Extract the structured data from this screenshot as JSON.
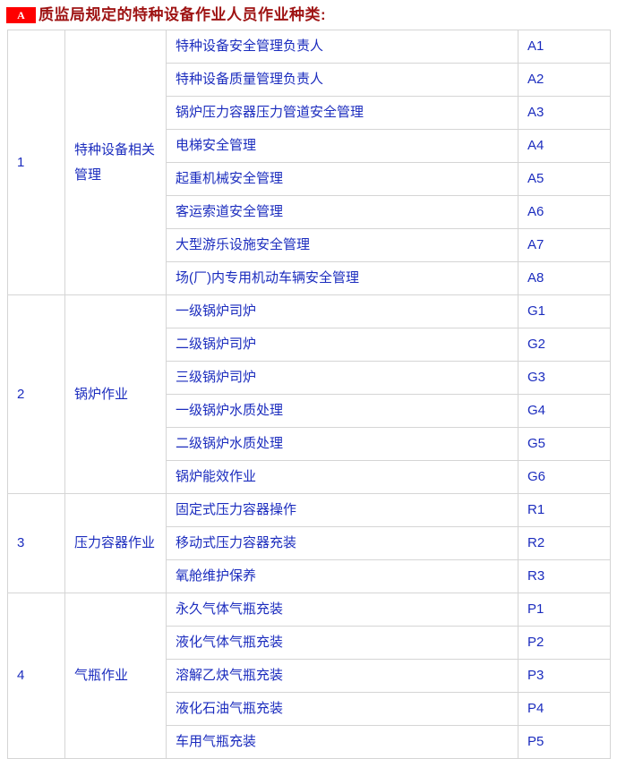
{
  "header": {
    "badge": "A",
    "title": "质监局规定的特种设备作业人员作业种类:"
  },
  "table": {
    "sections": [
      {
        "no": "1",
        "category": "特种设备相关管理",
        "items": [
          {
            "name": "特种设备安全管理负责人",
            "code": "A1"
          },
          {
            "name": "特种设备质量管理负责人",
            "code": "A2"
          },
          {
            "name": "锅炉压力容器压力管道安全管理",
            "code": "A3"
          },
          {
            "name": "电梯安全管理",
            "code": "A4"
          },
          {
            "name": "起重机械安全管理",
            "code": "A5"
          },
          {
            "name": "客运索道安全管理",
            "code": "A6"
          },
          {
            "name": "大型游乐设施安全管理",
            "code": "A7"
          },
          {
            "name": "场(厂)内专用机动车辆安全管理",
            "code": "A8"
          }
        ]
      },
      {
        "no": "2",
        "category": "锅炉作业",
        "items": [
          {
            "name": "一级锅炉司炉",
            "code": "G1"
          },
          {
            "name": "二级锅炉司炉",
            "code": "G2"
          },
          {
            "name": "三级锅炉司炉",
            "code": "G3"
          },
          {
            "name": "一级锅炉水质处理",
            "code": "G4"
          },
          {
            "name": "二级锅炉水质处理",
            "code": "G5"
          },
          {
            "name": "锅炉能效作业",
            "code": "G6"
          }
        ]
      },
      {
        "no": "3",
        "category": "压力容器作业",
        "items": [
          {
            "name": "固定式压力容器操作",
            "code": "R1"
          },
          {
            "name": "移动式压力容器充装",
            "code": "R2"
          },
          {
            "name": "氧舱维护保养",
            "code": "R3"
          }
        ]
      },
      {
        "no": "4",
        "category": "气瓶作业",
        "items": [
          {
            "name": "永久气体气瓶充装",
            "code": "P1"
          },
          {
            "name": "液化气体气瓶充装",
            "code": "P2"
          },
          {
            "name": "溶解乙炔气瓶充装",
            "code": "P3"
          },
          {
            "name": "液化石油气瓶充装",
            "code": "P4"
          },
          {
            "name": "车用气瓶充装",
            "code": "P5"
          }
        ]
      }
    ]
  },
  "colors": {
    "badge_red": "#fe0000",
    "title_dark_red": "#9e1313",
    "table_text_blue": "#1b2cbe",
    "border_gray": "#d5d5d5"
  }
}
